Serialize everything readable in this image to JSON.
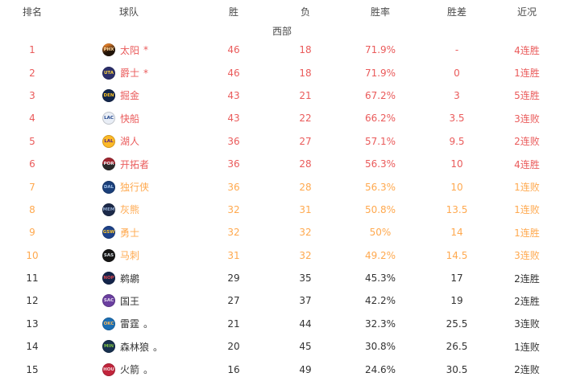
{
  "header": {
    "columns": [
      "排名",
      "球队",
      "胜",
      "负",
      "胜率",
      "胜差",
      "近况"
    ]
  },
  "section": {
    "label": "西部"
  },
  "colors": {
    "top_seed_text": "#ea5b5b",
    "mid_seed_text": "#ffa94f",
    "normal_text": "#333333"
  },
  "standings": [
    {
      "rank": "1",
      "team": "太阳",
      "marker": "*",
      "abbr": "PHX",
      "wins": "46",
      "losses": "18",
      "pct": "71.9%",
      "gb": "-",
      "streak": "4连胜",
      "tier": "red",
      "logo_bg": "linear-gradient(160deg,#f0862c 15%,#221408 60%)",
      "logo_fg": "#ffd9a0"
    },
    {
      "rank": "2",
      "team": "爵士",
      "marker": "*",
      "abbr": "UTA",
      "wins": "46",
      "losses": "18",
      "pct": "71.9%",
      "gb": "0",
      "streak": "1连胜",
      "tier": "red",
      "logo_bg": "#2b2f6b",
      "logo_fg": "#f9d23c"
    },
    {
      "rank": "3",
      "team": "掘金",
      "marker": "",
      "abbr": "DEN",
      "wins": "43",
      "losses": "21",
      "pct": "67.2%",
      "gb": "3",
      "streak": "5连胜",
      "tier": "red",
      "logo_bg": "#12264c",
      "logo_fg": "#fec524"
    },
    {
      "rank": "4",
      "team": "快船",
      "marker": "",
      "abbr": "LAC",
      "wins": "43",
      "losses": "22",
      "pct": "66.2%",
      "gb": "3.5",
      "streak": "3连败",
      "tier": "red",
      "logo_bg": "#e9eef6",
      "logo_fg": "#1d428a"
    },
    {
      "rank": "5",
      "team": "湖人",
      "marker": "",
      "abbr": "LAL",
      "wins": "36",
      "losses": "27",
      "pct": "57.1%",
      "gb": "9.5",
      "streak": "2连败",
      "tier": "red",
      "logo_bg": "#fdb927",
      "logo_fg": "#552583"
    },
    {
      "rank": "6",
      "team": "开拓者",
      "marker": "",
      "abbr": "POR",
      "wins": "36",
      "losses": "28",
      "pct": "56.3%",
      "gb": "10",
      "streak": "4连胜",
      "tier": "red",
      "logo_bg": "linear-gradient(#a22630 50%,#2a2a2a 50%)",
      "logo_fg": "#e8e8e8"
    },
    {
      "rank": "7",
      "team": "独行侠",
      "marker": "",
      "abbr": "DAL",
      "wins": "36",
      "losses": "28",
      "pct": "56.3%",
      "gb": "10",
      "streak": "1连败",
      "tier": "orange",
      "logo_bg": "#1a3f7a",
      "logo_fg": "#9fc0e8"
    },
    {
      "rank": "8",
      "team": "灰熊",
      "marker": "",
      "abbr": "MEM",
      "wins": "32",
      "losses": "31",
      "pct": "50.8%",
      "gb": "13.5",
      "streak": "1连败",
      "tier": "orange",
      "logo_bg": "#1c2a4a",
      "logo_fg": "#8fa8cc"
    },
    {
      "rank": "9",
      "team": "勇士",
      "marker": "",
      "abbr": "GSW",
      "wins": "32",
      "losses": "32",
      "pct": "50%",
      "gb": "14",
      "streak": "1连胜",
      "tier": "orange",
      "logo_bg": "#1d428a",
      "logo_fg": "#ffc72c"
    },
    {
      "rank": "10",
      "team": "马刺",
      "marker": "",
      "abbr": "SAS",
      "wins": "31",
      "losses": "32",
      "pct": "49.2%",
      "gb": "14.5",
      "streak": "3连败",
      "tier": "orange",
      "logo_bg": "#161616",
      "logo_fg": "#d7dde2"
    },
    {
      "rank": "11",
      "team": "鹈鹕",
      "marker": "",
      "abbr": "NOP",
      "wins": "29",
      "losses": "35",
      "pct": "45.3%",
      "gb": "17",
      "streak": "2连胜",
      "tier": "black",
      "logo_bg": "#13244a",
      "logo_fg": "#d6454d"
    },
    {
      "rank": "12",
      "team": "国王",
      "marker": "",
      "abbr": "SAC",
      "wins": "27",
      "losses": "37",
      "pct": "42.2%",
      "gb": "19",
      "streak": "2连胜",
      "tier": "black",
      "logo_bg": "#6b3fa0",
      "logo_fg": "#e3dcee"
    },
    {
      "rank": "13",
      "team": "雷霆",
      "marker": "。",
      "abbr": "OKC",
      "wins": "21",
      "losses": "44",
      "pct": "32.3%",
      "gb": "25.5",
      "streak": "3连败",
      "tier": "black",
      "logo_bg": "#1b6fb5",
      "logo_fg": "#f5b65c"
    },
    {
      "rank": "14",
      "team": "森林狼",
      "marker": "。",
      "abbr": "MIN",
      "wins": "20",
      "losses": "45",
      "pct": "30.8%",
      "gb": "26.5",
      "streak": "1连败",
      "tier": "black",
      "logo_bg": "#17304f",
      "logo_fg": "#7fc043"
    },
    {
      "rank": "15",
      "team": "火箭",
      "marker": "。",
      "abbr": "HOU",
      "wins": "16",
      "losses": "49",
      "pct": "24.6%",
      "gb": "30.5",
      "streak": "2连败",
      "tier": "black",
      "logo_bg": "#c2253c",
      "logo_fg": "#f0d9dc"
    }
  ]
}
